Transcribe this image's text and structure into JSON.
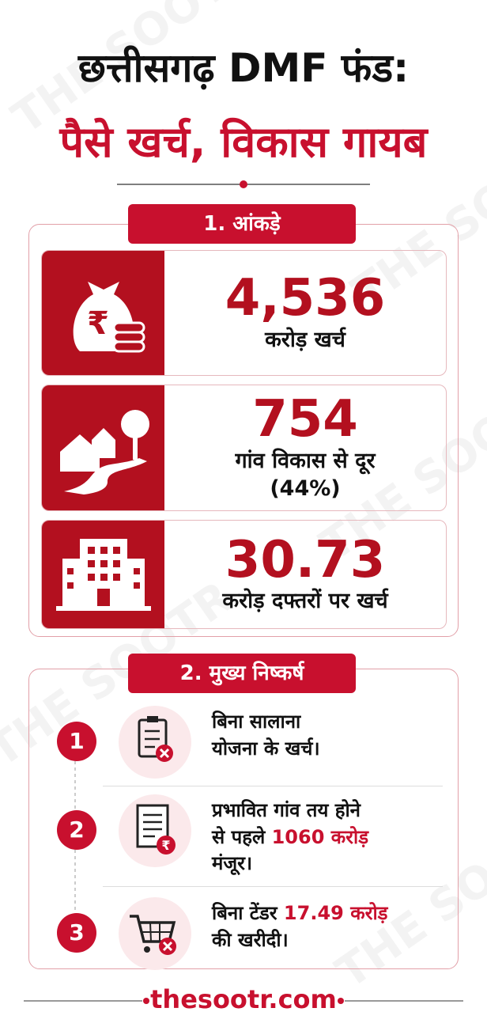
{
  "watermark": "THE SOOTR",
  "header": {
    "title_line1": "छत्तीसगढ़ DMF फंड:",
    "title_line2": "पैसे खर्च, विकास गायब"
  },
  "figures": {
    "heading": "1. आंकड़े",
    "items": [
      {
        "value": "4,536",
        "lines": [
          "करोड़ खर्च"
        ]
      },
      {
        "value": "754",
        "lines": [
          "गांव विकास से दूर",
          "(44%)"
        ]
      },
      {
        "value": "30.73",
        "lines": [
          "करोड़ दफ्तरों पर खर्च"
        ]
      }
    ]
  },
  "findings": {
    "heading": "2. मुख्य निष्कर्ष",
    "items": [
      {
        "number": "1",
        "lines": [
          [
            {
              "text": "बिना सालाना",
              "emphasis": false
            }
          ],
          [
            {
              "text": "योजना के खर्च।",
              "emphasis": false
            }
          ]
        ]
      },
      {
        "number": "2",
        "lines": [
          [
            {
              "text": "प्रभावित गांव तय होने",
              "emphasis": false
            }
          ],
          [
            {
              "text": "से पहले ",
              "emphasis": false
            },
            {
              "text": "1060 करोड़",
              "emphasis": true
            }
          ],
          [
            {
              "text": "मंजूर।",
              "emphasis": false
            }
          ]
        ]
      },
      {
        "number": "3",
        "lines": [
          [
            {
              "text": "बिना टेंडर ",
              "emphasis": false
            },
            {
              "text": "17.49 करोड़",
              "emphasis": true
            }
          ],
          [
            {
              "text": "की खरीदी।",
              "emphasis": false
            }
          ]
        ]
      }
    ]
  },
  "footer": {
    "site": "thesootr.com"
  }
}
